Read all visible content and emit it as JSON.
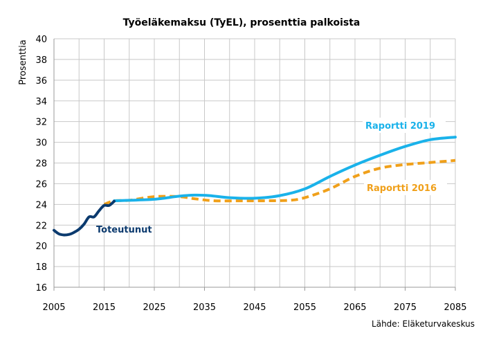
{
  "chart_data": {
    "type": "line",
    "title": "Työeläkemaksu (TyEL), prosenttia palkoista",
    "ylabel": "Prosenttia",
    "xlabel": "",
    "source": "Lähde: Eläketurvakeskus",
    "xlim": [
      2005,
      2085
    ],
    "ylim": [
      16,
      40
    ],
    "grid": true,
    "x_ticks": [
      2005,
      2015,
      2025,
      2035,
      2045,
      2055,
      2065,
      2075,
      2085
    ],
    "y_ticks": [
      16,
      18,
      20,
      22,
      24,
      26,
      28,
      30,
      32,
      34,
      36,
      38,
      40
    ],
    "series": [
      {
        "name": "Toteutunut",
        "color": "#0b3a6e",
        "dash": "solid",
        "points": [
          [
            2005,
            21.5
          ],
          [
            2006,
            21.15
          ],
          [
            2007,
            21.05
          ],
          [
            2008,
            21.1
          ],
          [
            2009,
            21.3
          ],
          [
            2010,
            21.6
          ],
          [
            2011,
            22.1
          ],
          [
            2012,
            22.8
          ],
          [
            2013,
            22.8
          ],
          [
            2014,
            23.4
          ],
          [
            2015,
            23.9
          ],
          [
            2016,
            23.9
          ],
          [
            2017,
            24.3
          ]
        ]
      },
      {
        "name": "Raportti 2019",
        "color": "#1ab2ea",
        "dash": "solid",
        "points": [
          [
            2017,
            24.35
          ],
          [
            2020,
            24.4
          ],
          [
            2025,
            24.5
          ],
          [
            2030,
            24.8
          ],
          [
            2033,
            24.9
          ],
          [
            2036,
            24.85
          ],
          [
            2040,
            24.65
          ],
          [
            2045,
            24.6
          ],
          [
            2050,
            24.85
          ],
          [
            2055,
            25.5
          ],
          [
            2060,
            26.7
          ],
          [
            2065,
            27.8
          ],
          [
            2070,
            28.75
          ],
          [
            2075,
            29.6
          ],
          [
            2080,
            30.25
          ],
          [
            2085,
            30.5
          ]
        ]
      },
      {
        "name": "Raportti 2016",
        "color": "#f0a01a",
        "dash": "dashed",
        "points": [
          [
            2015,
            24.0
          ],
          [
            2017,
            24.35
          ],
          [
            2020,
            24.4
          ],
          [
            2025,
            24.75
          ],
          [
            2030,
            24.75
          ],
          [
            2033,
            24.55
          ],
          [
            2037,
            24.35
          ],
          [
            2042,
            24.35
          ],
          [
            2047,
            24.35
          ],
          [
            2052,
            24.4
          ],
          [
            2055,
            24.65
          ],
          [
            2060,
            25.5
          ],
          [
            2065,
            26.7
          ],
          [
            2070,
            27.5
          ],
          [
            2075,
            27.85
          ],
          [
            2080,
            28.05
          ],
          [
            2085,
            28.25
          ]
        ]
      }
    ],
    "labels": {
      "toteutunut": "Toteutunut",
      "r2019": "Raportti 2019",
      "r2016": "Raportti 2016"
    }
  }
}
